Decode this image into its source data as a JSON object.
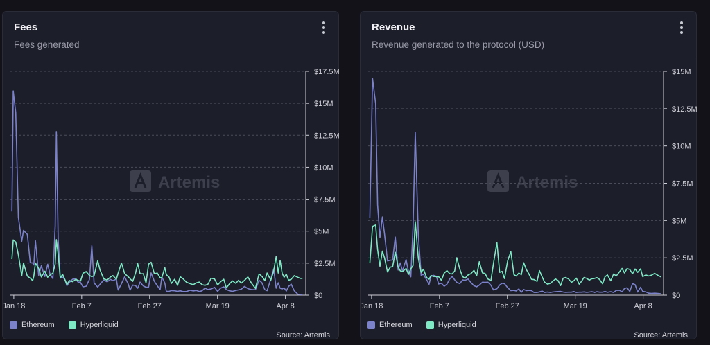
{
  "colors": {
    "ethereum": "#7b82c9",
    "hyperliquid": "#7fe9c6",
    "grid": "#4a4c5a",
    "axis_text": "#d0d0d8",
    "watermark": "#3d3f4c"
  },
  "icons": {
    "menu": "vertical-dots-icon",
    "logo": "artemis-logo-icon"
  },
  "watermark": "Artemis",
  "source": "Source: Artemis",
  "legend": [
    "Ethereum",
    "Hyperliquid"
  ],
  "chart_data": [
    {
      "type": "line",
      "title": "Fees",
      "subtitle": "Fees generated",
      "x_tick_labels": [
        "Jan 18",
        "Feb 7",
        "Feb 27",
        "Mar 19",
        "Apr 8"
      ],
      "x_tick_days": [
        0,
        20,
        40,
        60,
        80
      ],
      "y_tick_labels": [
        "$0",
        "$2.5M",
        "$5M",
        "$7.5M",
        "$10M",
        "$12.5M",
        "$15M",
        "$17.5M"
      ],
      "y_tick_values": [
        0,
        2.5,
        5,
        7.5,
        10,
        12.5,
        15,
        17.5
      ],
      "ylim": [
        0,
        17.5
      ],
      "y_unit": "USD millions",
      "x_range_days": [
        -1,
        86
      ],
      "x": [
        -0.55,
        -0.16,
        0.58,
        1.35,
        2.34,
        2.86,
        3.98,
        4.87,
        5.55,
        5.91,
        6.38,
        7.33,
        8.11,
        9.15,
        9.99,
        10.65,
        11.51,
        12.19,
        12.53,
        13.08,
        13.69,
        14.37,
        15.06,
        15.64,
        16.39,
        17.31,
        18.32,
        18.87,
        19.65,
        20.38,
        21.32,
        22.29,
        22.98,
        23.66,
        24.72,
        25.39,
        26.48,
        27.47,
        28.47,
        29.19,
        30.21,
        30.73,
        31.71,
        32.65,
        33.74,
        34.25,
        35.03,
        35.87,
        36.49,
        37.2,
        38.14,
        38.94,
        39.71,
        40.44,
        41.4,
        42.25,
        43.09,
        43.61,
        44.48,
        44.93,
        45.73,
        46.45,
        47.38,
        48.23,
        49.01,
        49.82,
        50.81,
        51.92,
        52.83,
        53.76,
        54.66,
        55.46,
        56.29,
        57.15,
        58.12,
        59.12,
        60.05,
        60.89,
        61.84,
        62.6,
        63.54,
        64.44,
        65.4,
        66.18,
        66.98,
        67.96,
        68.94,
        69.99,
        71.17,
        72.23,
        73.06,
        73.95,
        74.61,
        75.7,
        76.55,
        77.28,
        77.89,
        78.45,
        79.03,
        79.61,
        80.26,
        80.94,
        81.71,
        82.62,
        83.68,
        84.34,
        85.02
      ],
      "series": [
        {
          "name": "Ethereum",
          "values": [
            6.54,
            15.97,
            14.27,
            6.09,
            4.21,
            5.06,
            4.75,
            2.53,
            2.52,
            2.36,
            4.25,
            1.54,
            2.29,
            1.46,
            2.41,
            1.68,
            1.29,
            5.43,
            12.79,
            4.38,
            1.39,
            1.4,
            1.22,
            0.75,
            1.01,
            1.24,
            1.27,
            1.03,
            0.99,
            0.65,
            0.7,
            1.23,
            3.86,
            0.96,
            0.63,
            0.85,
            1.18,
            1.04,
            1.23,
            1.13,
            1.25,
            0.4,
            0.9,
            1.43,
            0.85,
            0.39,
            0.79,
            0.74,
            0.54,
            1.02,
            0.72,
            0.62,
            0.63,
            1.74,
            1.08,
            0.74,
            0.44,
            1.41,
            0.95,
            0.3,
            0.3,
            0.36,
            0.34,
            0.3,
            0.34,
            0.28,
            0.28,
            0.38,
            0.33,
            0.37,
            0.28,
            0.34,
            0.55,
            0.44,
            0.48,
            0.61,
            0.3,
            0.54,
            0.65,
            0.44,
            0.34,
            0.3,
            0.37,
            0.41,
            0.46,
            0.68,
            0.51,
            0.44,
            0.42,
            1.16,
            0.98,
            0.43,
            0.35,
            1.25,
            2.05,
            0.54,
            0.97,
            0.54,
            0.48,
            0.57,
            0.32,
            0.68,
            0.86,
            0.34,
            0.07,
            0.05,
            0.04
          ]
        },
        {
          "name": "Hyperliquid",
          "values": [
            2.82,
            4.32,
            4.15,
            3.16,
            1.51,
            2.51,
            1.49,
            1.32,
            1.13,
            1.49,
            2.51,
            2.08,
            1.42,
            1.87,
            1.4,
            1.57,
            1.72,
            2.43,
            4.34,
            3.21,
            1.33,
            1.63,
            1.21,
            0.84,
            1.14,
            1.05,
            1.24,
            1.15,
            1.1,
            1.71,
            1.84,
            1.54,
            1.44,
            1.52,
            2.69,
            1.98,
            1.28,
            1.17,
            1.42,
            1.53,
            1.24,
            1.73,
            2.51,
            1.68,
            1.43,
            1.28,
            1.08,
            1.73,
            2.47,
            1.68,
            1.67,
            0.96,
            2.42,
            2.57,
            1.67,
            1.73,
            1.36,
            1.37,
            2.15,
            1.6,
            1.41,
            0.92,
            1.24,
            0.77,
            1.43,
            1.29,
            1.02,
            0.9,
            0.82,
            0.96,
            1.02,
            0.82,
            0.77,
            0.84,
            1.32,
            1.26,
            0.8,
            1.04,
            1.24,
            0.57,
            0.89,
            1.11,
            0.92,
            1.16,
            0.94,
            1.16,
            1.42,
            0.95,
            0.53,
            1.65,
            1.48,
            1.14,
            1.73,
            1.17,
            1.88,
            3.03,
            1.73,
            2.71,
            1.72,
            1.39,
            1.64,
            1.16,
            1.24,
            1.52,
            1.39,
            1.31,
            1.3
          ]
        }
      ]
    },
    {
      "type": "line",
      "title": "Revenue",
      "subtitle": "Revenue generated to the protocol (USD)",
      "x_tick_labels": [
        "Jan 18",
        "Feb 7",
        "Feb 27",
        "Mar 19",
        "Apr 8"
      ],
      "x_tick_days": [
        0,
        20,
        40,
        60,
        80
      ],
      "y_tick_labels": [
        "$0",
        "$2.5M",
        "$5M",
        "$7.5M",
        "$10M",
        "$12.5M",
        "$15M"
      ],
      "y_tick_values": [
        0,
        2.5,
        5,
        7.5,
        10,
        12.5,
        15
      ],
      "ylim": [
        0,
        15
      ],
      "y_unit": "USD millions",
      "x_range_days": [
        -1,
        86
      ],
      "x": [
        -0.5,
        0.29,
        1.21,
        1.77,
        2.47,
        3.18,
        3.81,
        4.69,
        5.5,
        6.21,
        6.98,
        7.83,
        8.45,
        9.08,
        10.18,
        10.87,
        11.55,
        12.22,
        12.87,
        13.77,
        14.6,
        15.27,
        16.22,
        16.93,
        17.52,
        18.25,
        19.09,
        19.77,
        20.57,
        21.38,
        22.2,
        23.02,
        23.76,
        24.49,
        25.1,
        25.99,
        26.81,
        27.56,
        28.42,
        29.26,
        30.17,
        30.96,
        31.74,
        32.66,
        33.43,
        34.27,
        35.15,
        35.93,
        36.92,
        37.72,
        38.46,
        39.16,
        40.09,
        41.02,
        41.94,
        42.6,
        43.38,
        44.11,
        44.81,
        45.62,
        46.31,
        47.12,
        47.86,
        48.74,
        49.47,
        50.27,
        50.98,
        51.81,
        52.65,
        53.32,
        54.17,
        54.91,
        55.68,
        56.45,
        57.14,
        57.98,
        58.87,
        59.58,
        60.3,
        61.16,
        61.8,
        62.57,
        63.38,
        64.15,
        64.91,
        65.66,
        66.39,
        67.15,
        68.05,
        68.77,
        69.48,
        70.45,
        71.3,
        72.08,
        73.09,
        73.78,
        74.48,
        75.25,
        76.05,
        76.88,
        77.63,
        78.38,
        79.24,
        79.87,
        80.78,
        81.62,
        82.51,
        83.38,
        84.35,
        85.23
      ],
      "series": [
        {
          "name": "Ethereum",
          "values": [
            5.17,
            14.53,
            12.83,
            6.05,
            3.85,
            5.24,
            4.09,
            2.29,
            2.34,
            2.35,
            3.89,
            1.68,
            2.16,
            1.62,
            2.38,
            1.58,
            1.22,
            4.53,
            10.91,
            4.07,
            1.33,
            1.4,
            1.03,
            0.73,
            1.26,
            1.33,
            1.26,
            0.75,
            0.8,
            0.6,
            0.74,
            1.08,
            1.25,
            1.02,
            0.86,
            0.77,
            1.02,
            0.99,
            1.08,
            0.85,
            0.63,
            0.56,
            0.68,
            0.87,
            0.86,
            0.87,
            0.67,
            0.35,
            0.43,
            0.68,
            0.8,
            0.77,
            0.5,
            0.3,
            0.32,
            0.28,
            0.42,
            0.19,
            0.38,
            0.3,
            0.32,
            0.3,
            0.18,
            0.18,
            0.22,
            0.27,
            0.18,
            0.21,
            0.18,
            0.21,
            0.23,
            0.24,
            0.25,
            0.21,
            0.19,
            0.2,
            0.2,
            0.24,
            0.18,
            0.2,
            0.2,
            0.22,
            0.19,
            0.21,
            0.23,
            0.18,
            0.23,
            0.2,
            0.2,
            0.25,
            0.19,
            0.23,
            0.18,
            0.32,
            0.32,
            0.22,
            0.44,
            0.5,
            0.25,
            0.77,
            0.7,
            0.21,
            0.53,
            0.25,
            0.22,
            0.13,
            0.11,
            0.13,
            0.11,
            0.09
          ]
        },
        {
          "name": "Hyperliquid",
          "values": [
            2.13,
            4.61,
            4.7,
            3.05,
            1.93,
            2.95,
            2.49,
            1.55,
            1.87,
            1.91,
            2.87,
            1.89,
            1.63,
            1.57,
            1.79,
            1.39,
            1.77,
            1.98,
            4.92,
            2.48,
            1.53,
            1.73,
            1.18,
            1.07,
            1.32,
            1.25,
            1.24,
            1.23,
            0.99,
            1.47,
            1.64,
            1.44,
            1.42,
            1.62,
            2.51,
            1.73,
            1.24,
            1.13,
            1.35,
            1.44,
            1.66,
            1.3,
            2.24,
            1.49,
            1.45,
            1.08,
            0.96,
            2.14,
            3.52,
            1.53,
            1.59,
            1.11,
            2.3,
            2.91,
            1.37,
            1.28,
            1.48,
            1.37,
            2.17,
            1.7,
            1.43,
            1.06,
            1.04,
            0.92,
            1.64,
            1.21,
            0.87,
            0.74,
            0.79,
            0.92,
            1.08,
            0.98,
            0.64,
            1.14,
            1.18,
            1.09,
            0.86,
            0.96,
            1.14,
            0.74,
            0.91,
            1.18,
            1.12,
            1.01,
            1.1,
            1.12,
            1.17,
            1.05,
            0.76,
            1.23,
            1.35,
            0.96,
            1.42,
            1.28,
            1.58,
            1.79,
            1.49,
            1.78,
            1.72,
            1.43,
            1.75,
            1.53,
            1.76,
            1.24,
            1.35,
            1.28,
            1.34,
            1.46,
            1.33,
            1.22
          ]
        }
      ]
    }
  ]
}
